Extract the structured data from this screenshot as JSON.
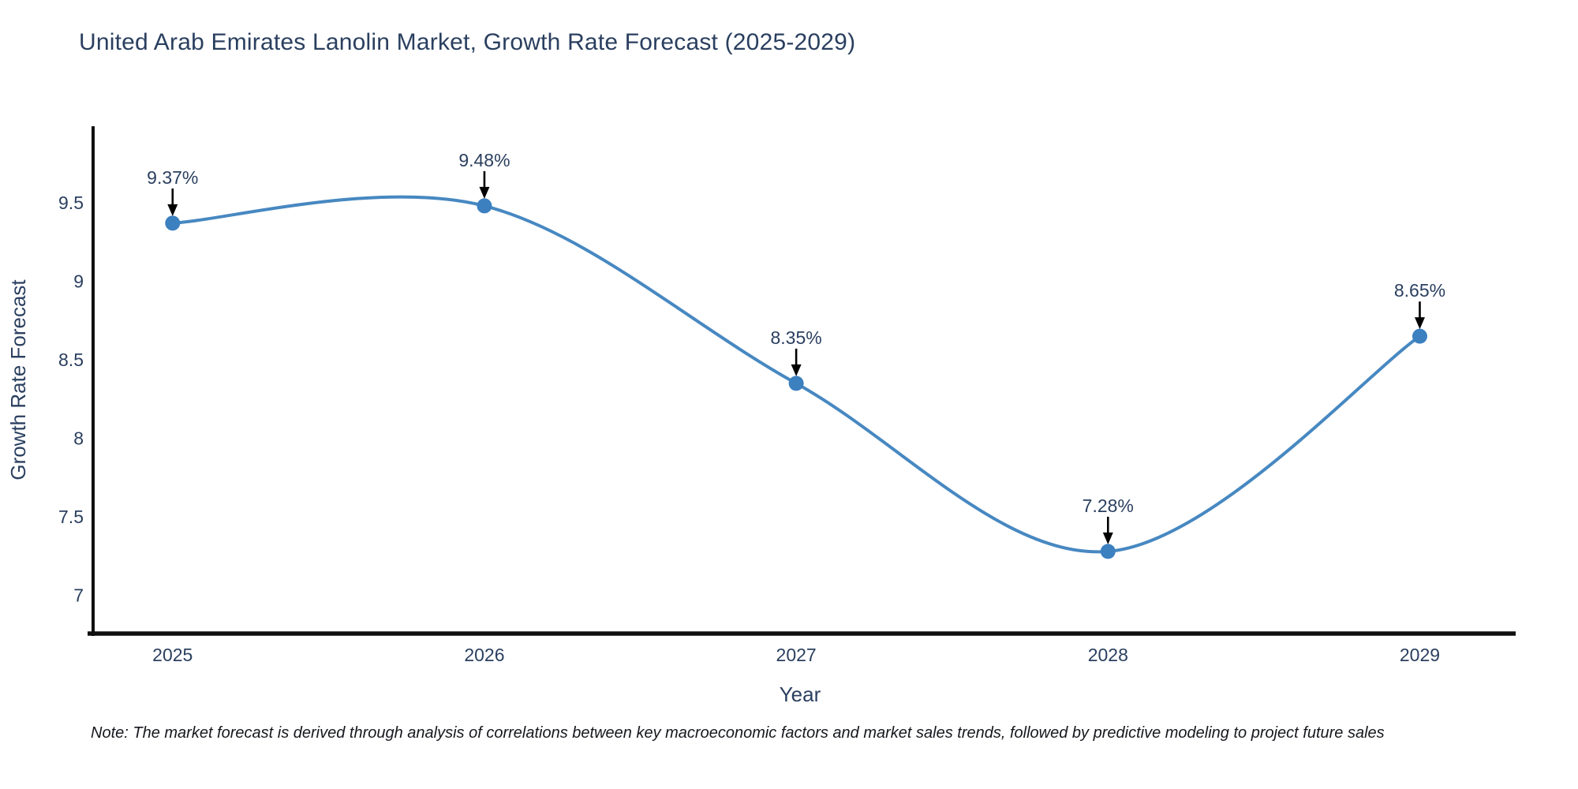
{
  "chart_data": {
    "type": "line",
    "title": "United Arab Emirates Lanolin Market, Growth Rate Forecast (2025-2029)",
    "xlabel": "Year",
    "ylabel": "Growth Rate Forecast",
    "categories": [
      2025,
      2026,
      2027,
      2028,
      2029
    ],
    "values": [
      9.37,
      9.48,
      8.35,
      7.28,
      8.65
    ],
    "labels": [
      "9.37%",
      "9.48%",
      "8.35%",
      "7.28%",
      "8.65%"
    ],
    "y_ticks": [
      7,
      7.5,
      8,
      8.5,
      9,
      9.5
    ],
    "x_range": [
      2024.745,
      2029.305
    ],
    "y_range": [
      6.757,
      9.987
    ],
    "line_shape": "spline",
    "grid": false,
    "legend": false,
    "colors": {
      "line": "#4788c1",
      "marker": "#3c80c0",
      "arrow": "#000000",
      "axis": "#101010",
      "text": "#2a3f5f"
    },
    "note": "Note: The market forecast is derived through analysis of correlations between key macroeconomic factors and market sales trends, followed by predictive modeling to project future sales"
  }
}
